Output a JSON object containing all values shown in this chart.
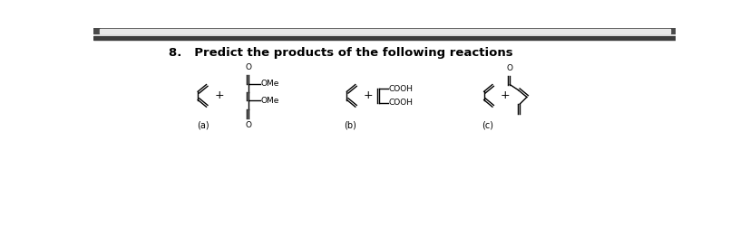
{
  "title": "8.   Predict the products of the following reactions",
  "background_color": "#ffffff",
  "label_a": "(a)",
  "label_b": "(b)",
  "label_c": "(c)",
  "header_color": "#4a4a4a",
  "header_inner_color": "#e0e0e0",
  "sep_color": "#3a3a3a",
  "title_fontsize": 9.5,
  "label_fontsize": 7,
  "chem_fontsize": 6.5
}
